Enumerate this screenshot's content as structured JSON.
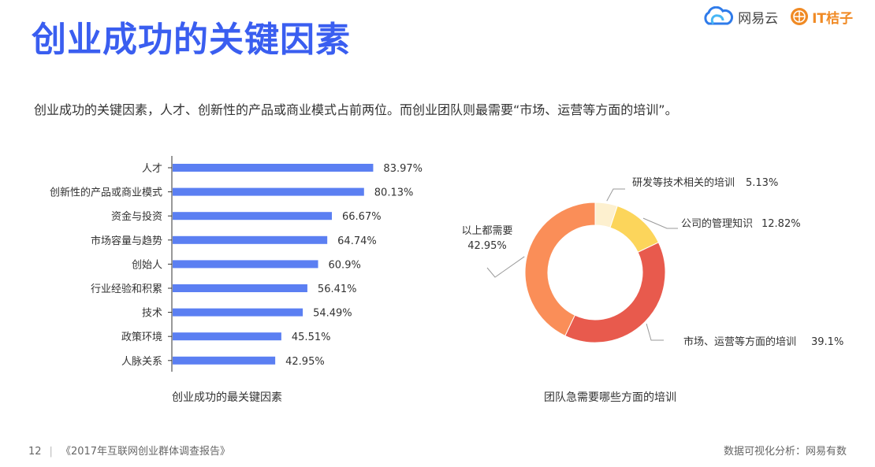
{
  "title": "创业成功的关键因素",
  "subtitle": "创业成功的关键因素，人才、创新性的产品或商业模式占前两位。而创业团队则最需要“市场、运营等方面的培训”。",
  "logos": {
    "left": "网易云",
    "right": "IT桔子"
  },
  "colors": {
    "title": "#3a5ef0",
    "bar": "#5b7ff2",
    "leader": "#999999"
  },
  "chart_data": [
    {
      "type": "bar",
      "orientation": "horizontal",
      "caption": "创业成功的最关键因素",
      "categories": [
        "人才",
        "创新性的产品或商业模式",
        "资金与投资",
        "市场容量与趋势",
        "创始人",
        "行业经验和积累",
        "技术",
        "政策环境",
        "人脉关系"
      ],
      "values": [
        83.97,
        80.13,
        66.67,
        64.74,
        60.9,
        56.41,
        54.49,
        45.51,
        42.95
      ],
      "value_labels": [
        "83.97%",
        "80.13%",
        "66.67%",
        "64.74%",
        "60.9%",
        "56.41%",
        "54.49%",
        "45.51%",
        "42.95%"
      ],
      "xlim": [
        0,
        100
      ]
    },
    {
      "type": "pie",
      "donut": true,
      "caption": "团队急需要哪些方面的培训",
      "slices": [
        {
          "label": "研发等技术相关的培训",
          "value": 5.13,
          "value_label": "5.13%",
          "color": "#fdf0cf"
        },
        {
          "label": "公司的管理知识",
          "value": 12.82,
          "value_label": "12.82%",
          "color": "#fcd55b"
        },
        {
          "label": "市场、运营等方面的培训",
          "value": 39.1,
          "value_label": "39.1%",
          "color": "#e85a4d"
        },
        {
          "label": "以上都需要",
          "value": 42.95,
          "value_label": "42.95%",
          "color": "#fa8e58"
        }
      ]
    }
  ],
  "footer": {
    "page": "12",
    "source": "《2017年互联网创业群体调查报告》",
    "credit": "数据可视化分析：网易有数"
  }
}
